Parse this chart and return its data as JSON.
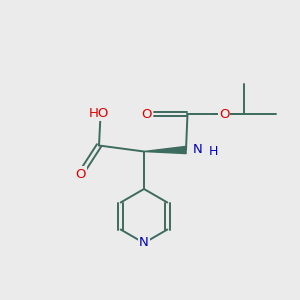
{
  "background_color": "#ebebeb",
  "bond_color": "#3d6b5e",
  "atom_colors": {
    "O": "#dd0000",
    "N": "#0000bb",
    "C": "#3d6b5e",
    "H": "#3d6b5e"
  },
  "figsize": [
    3.0,
    3.0
  ],
  "dpi": 100
}
